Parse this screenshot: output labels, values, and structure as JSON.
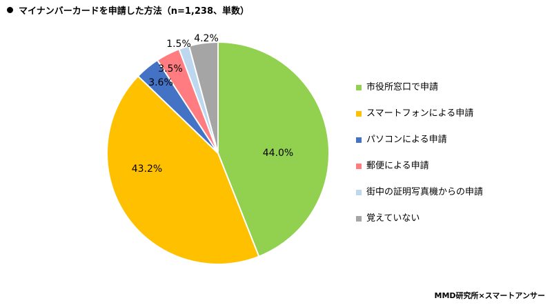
{
  "chart_data": {
    "type": "pie",
    "title": "マイナンバーカードを申請した方法（n=1,238、単数）",
    "categories": [
      "市役所窓口で申請",
      "スマートフォンによる申請",
      "パソコンによる申請",
      "郵便による申請",
      "街中の証明写真機からの申請",
      "覚えていない"
    ],
    "values": [
      44.0,
      43.2,
      3.6,
      3.5,
      1.5,
      4.2
    ],
    "labels": [
      "44.0%",
      "43.2%",
      "3.6%",
      "3.5%",
      "1.5%",
      "4.2%"
    ],
    "colors": [
      "#92D050",
      "#FFC000",
      "#4472C4",
      "#FF7C80",
      "#BDD7EE",
      "#A5A5A5"
    ],
    "legend_position": "right",
    "start": "top",
    "direction": "clockwise"
  },
  "credit": "MMD研究所×スマートアンサー"
}
